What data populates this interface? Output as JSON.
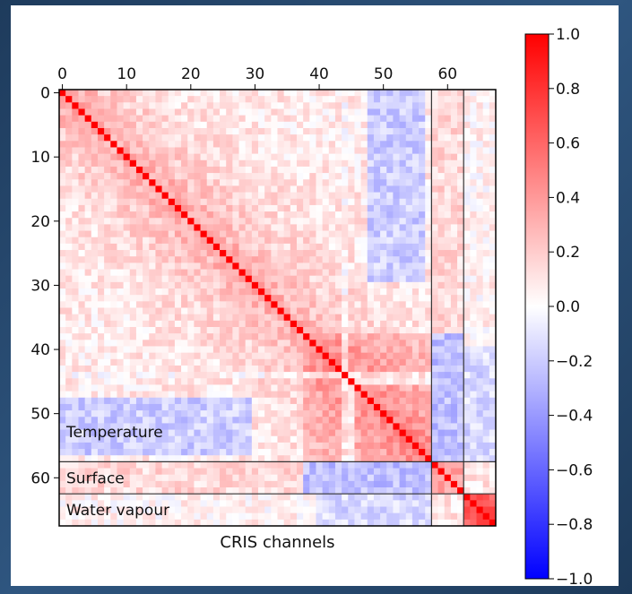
{
  "chart_data": {
    "type": "heatmap",
    "title": "",
    "xlabel": "CRIS channels",
    "ylabel": "",
    "n_channels": 68,
    "x_ticks": [
      0,
      10,
      20,
      30,
      40,
      50,
      60
    ],
    "y_ticks": [
      0,
      10,
      20,
      30,
      40,
      50,
      60
    ],
    "value_range": [
      -1.0,
      1.0
    ],
    "colormap": "bwr",
    "colors": {
      "low": "#0000ff",
      "mid": "#ffffff",
      "high": "#ff0000"
    },
    "colorbar": {
      "ticks": [
        1.0,
        0.8,
        0.6,
        0.4,
        0.2,
        0.0,
        -0.2,
        -0.4,
        -0.6,
        -0.8,
        -1.0
      ],
      "tick_labels": [
        "1.0",
        "0.8",
        "0.6",
        "0.4",
        "0.2",
        "0.0",
        "−0.2",
        "−0.4",
        "−0.6",
        "−0.8",
        "−1.0"
      ]
    },
    "region_boundaries": [
      58,
      63
    ],
    "regions": [
      {
        "label": "Temperature",
        "start": 0,
        "end": 58
      },
      {
        "label": "Surface",
        "start": 58,
        "end": 63
      },
      {
        "label": "Water vapour",
        "start": 63,
        "end": 68
      }
    ],
    "diagonal_value": 1.0,
    "x_tick_labels_position": "top"
  }
}
